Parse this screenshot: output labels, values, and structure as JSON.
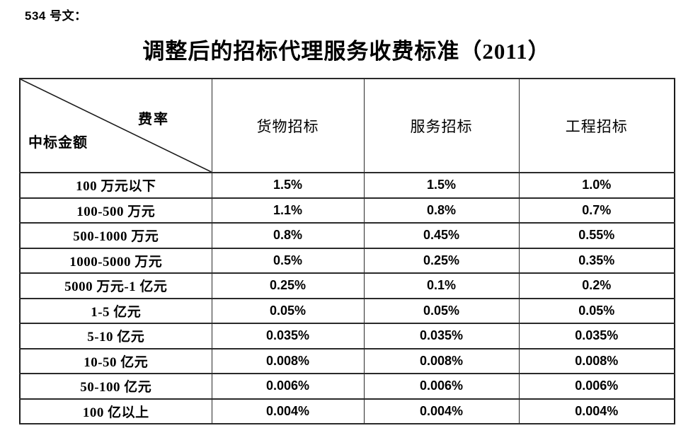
{
  "page": {
    "doc_label": "534 号文：",
    "title": "调整后的招标代理服务收费标准（2011）"
  },
  "table": {
    "corner": {
      "top_right": "费率",
      "bottom_left": "中标金额"
    },
    "columns": [
      "货物招标",
      "服务招标",
      "工程招标"
    ],
    "rows": [
      {
        "label": "100 万元以下",
        "values": [
          "1.5%",
          "1.5%",
          "1.0%"
        ]
      },
      {
        "label": "100-500 万元",
        "values": [
          "1.1%",
          "0.8%",
          "0.7%"
        ]
      },
      {
        "label": "500-1000 万元",
        "values": [
          "0.8%",
          "0.45%",
          "0.55%"
        ]
      },
      {
        "label": "1000-5000 万元",
        "values": [
          "0.5%",
          "0.25%",
          "0.35%"
        ]
      },
      {
        "label": "5000 万元-1 亿元",
        "values": [
          "0.25%",
          "0.1%",
          "0.2%"
        ]
      },
      {
        "label": "1-5 亿元",
        "values": [
          "0.05%",
          "0.05%",
          "0.05%"
        ]
      },
      {
        "label": "5-10 亿元",
        "values": [
          "0.035%",
          "0.035%",
          "0.035%"
        ]
      },
      {
        "label": "10-50 亿元",
        "values": [
          "0.008%",
          "0.008%",
          "0.008%"
        ]
      },
      {
        "label": "50-100 亿元",
        "values": [
          "0.006%",
          "0.006%",
          "0.006%"
        ]
      },
      {
        "label": "100 亿以上",
        "values": [
          "0.004%",
          "0.004%",
          "0.004%"
        ]
      }
    ]
  },
  "colors": {
    "text": "#000000",
    "border": "#1a1a1a",
    "background": "#ffffff"
  }
}
